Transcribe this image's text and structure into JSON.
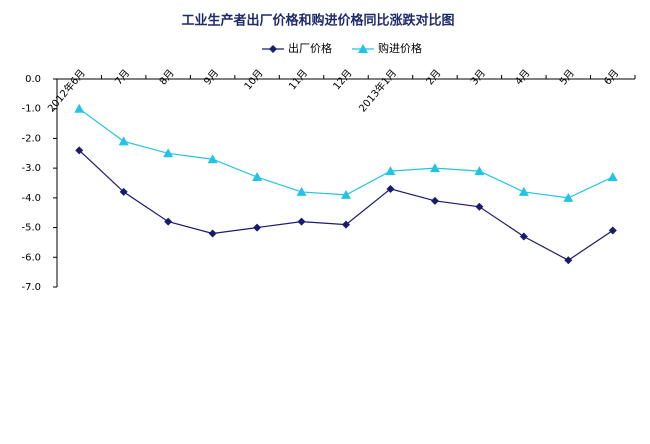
{
  "chart_data": {
    "type": "line",
    "title": "工业生产者出厂价格和购进价格同比涨跌对比图",
    "categories": [
      "2012年6月",
      "7月",
      "8月",
      "9月",
      "10月",
      "11月",
      "12月",
      "2013年1月",
      "2月",
      "3月",
      "4月",
      "5月",
      "6月"
    ],
    "series": [
      {
        "name": "出厂价格",
        "color": "#1a1a6e",
        "marker": "diamond",
        "values": [
          -2.4,
          -3.8,
          -4.8,
          -5.2,
          -5.0,
          -4.8,
          -4.9,
          -3.7,
          -4.1,
          -4.3,
          -5.3,
          -6.1,
          -5.1
        ]
      },
      {
        "name": "购进价格",
        "color": "#22c4e6",
        "marker": "triangle",
        "values": [
          -1.0,
          -2.1,
          -2.5,
          -2.7,
          -3.3,
          -3.8,
          -3.9,
          -3.1,
          -3.0,
          -3.1,
          -3.8,
          -4.0,
          -3.3
        ]
      }
    ],
    "ylim": [
      -7,
      0
    ],
    "yticks": [
      {
        "value": 0,
        "label": "0.0"
      },
      {
        "value": -1,
        "label": "-1.0"
      },
      {
        "value": -2,
        "label": "-2.0"
      },
      {
        "value": -3,
        "label": "-3.0"
      },
      {
        "value": -4,
        "label": "-4.0"
      },
      {
        "value": -5,
        "label": "-5.0"
      },
      {
        "value": -6,
        "label": "-6.0"
      },
      {
        "value": -7,
        "label": "-7.0"
      }
    ],
    "legend": "top"
  }
}
